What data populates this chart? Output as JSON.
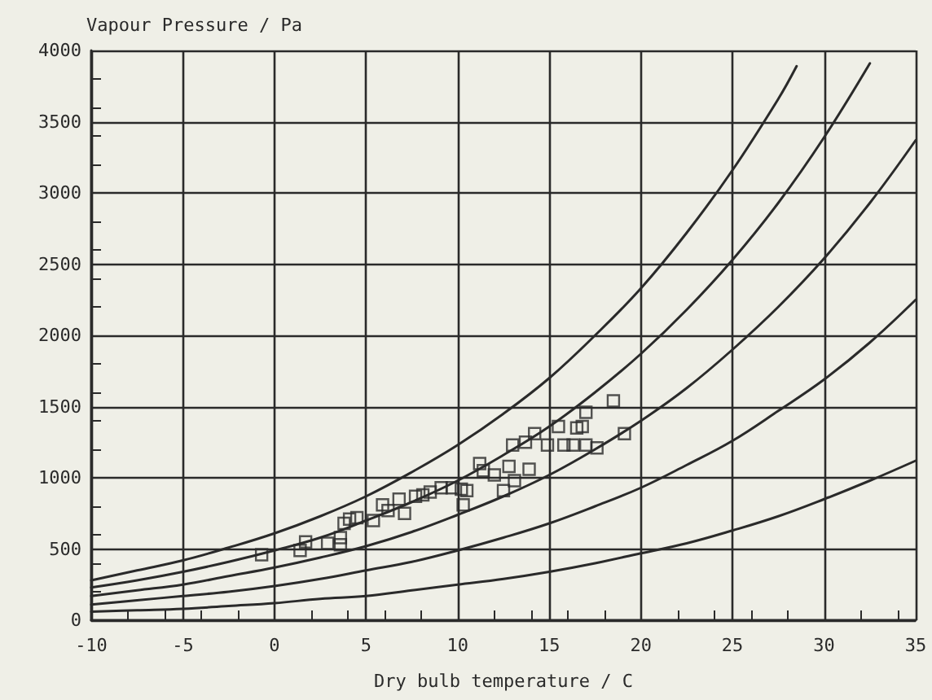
{
  "chart_data": {
    "type": "line",
    "xlabel": "Dry bulb temperature / C",
    "ylabel": "Vapour Pressure / Pa",
    "xlim": [
      -10,
      35
    ],
    "xticks": [
      -10,
      -5,
      0,
      5,
      10,
      15,
      20,
      25,
      30,
      35
    ],
    "ylim": [
      0,
      4000
    ],
    "yticks": [
      0,
      500,
      1000,
      1500,
      2000,
      2500,
      3000,
      3500,
      4000
    ],
    "grid": true,
    "marker": "none",
    "line_style": "solid",
    "series": [
      {
        "color": "#2a2a2a",
        "x": [
          -10,
          -7.5,
          -5,
          -2.5,
          0,
          2.5,
          5,
          7.5,
          10,
          12.5,
          15,
          17.5,
          20,
          22.5,
          25,
          27.5,
          28.5
        ],
        "values": [
          280,
          350,
          420,
          510,
          610,
          730,
          870,
          1040,
          1230,
          1450,
          1700,
          2000,
          2330,
          2720,
          3160,
          3660,
          3890
        ]
      },
      {
        "color": "#2a2a2a",
        "x": [
          -10,
          -7.5,
          -5,
          -2.5,
          0,
          2.5,
          5,
          7.5,
          10,
          12.5,
          15,
          17.5,
          20,
          22.5,
          25,
          27.5,
          30,
          32.5
        ],
        "values": [
          230,
          280,
          340,
          410,
          490,
          580,
          700,
          830,
          980,
          1160,
          1360,
          1600,
          1870,
          2180,
          2530,
          2930,
          3390,
          3910
        ]
      },
      {
        "color": "#2a2a2a",
        "x": [
          -10,
          -7.5,
          -5,
          -2.5,
          0,
          2.5,
          5,
          7.5,
          10,
          12.5,
          15,
          17.5,
          20,
          22.5,
          25,
          27.5,
          30,
          32.5,
          35
        ],
        "values": [
          170,
          210,
          250,
          310,
          370,
          440,
          520,
          620,
          740,
          870,
          1020,
          1200,
          1400,
          1630,
          1900,
          2200,
          2540,
          2930,
          3370
        ]
      },
      {
        "color": "#2a2a2a",
        "x": [
          -10,
          -7.5,
          -5,
          -2.5,
          0,
          2.5,
          5,
          7.5,
          10,
          12.5,
          15,
          17.5,
          20,
          22.5,
          25,
          27.5,
          30,
          32.5,
          35
        ],
        "values": [
          110,
          140,
          170,
          200,
          240,
          290,
          350,
          410,
          490,
          580,
          680,
          800,
          930,
          1090,
          1260,
          1470,
          1690,
          1950,
          2250
        ]
      },
      {
        "color": "#2a2a2a",
        "x": [
          -10,
          -7.5,
          -5,
          -2.5,
          0,
          2.5,
          5,
          7.5,
          10,
          12.5,
          15,
          17.5,
          20,
          22.5,
          25,
          27.5,
          30,
          32.5,
          35
        ],
        "values": [
          60,
          70,
          80,
          100,
          120,
          150,
          170,
          210,
          250,
          290,
          340,
          400,
          470,
          540,
          630,
          730,
          850,
          980,
          1120
        ]
      },
      {
        "type": "scatter",
        "marker": "square",
        "color": "#2a2a2a",
        "x": [
          -0.7,
          1.4,
          1.7,
          2.9,
          3.6,
          3.6,
          3.8,
          4.1,
          4.5,
          5.4,
          5.9,
          6.2,
          6.8,
          7.1,
          7.7,
          8.1,
          8.5,
          9.1,
          9.7,
          10.2,
          10.3,
          10.5,
          11.2,
          11.4,
          12.0,
          12.5,
          12.8,
          13.0,
          13.1,
          13.7,
          13.9,
          14.2,
          14.9,
          15.5,
          15.8,
          16.3,
          16.5,
          16.8,
          17.0,
          17.0,
          17.6,
          18.5,
          19.1
        ],
        "values": [
          460,
          490,
          550,
          540,
          580,
          530,
          680,
          710,
          720,
          700,
          810,
          770,
          850,
          750,
          870,
          880,
          900,
          930,
          930,
          920,
          810,
          910,
          1100,
          1050,
          1020,
          910,
          1080,
          1230,
          980,
          1250,
          1060,
          1310,
          1230,
          1360,
          1230,
          1230,
          1350,
          1360,
          1460,
          1230,
          1210,
          1540,
          1310
        ]
      }
    ]
  }
}
